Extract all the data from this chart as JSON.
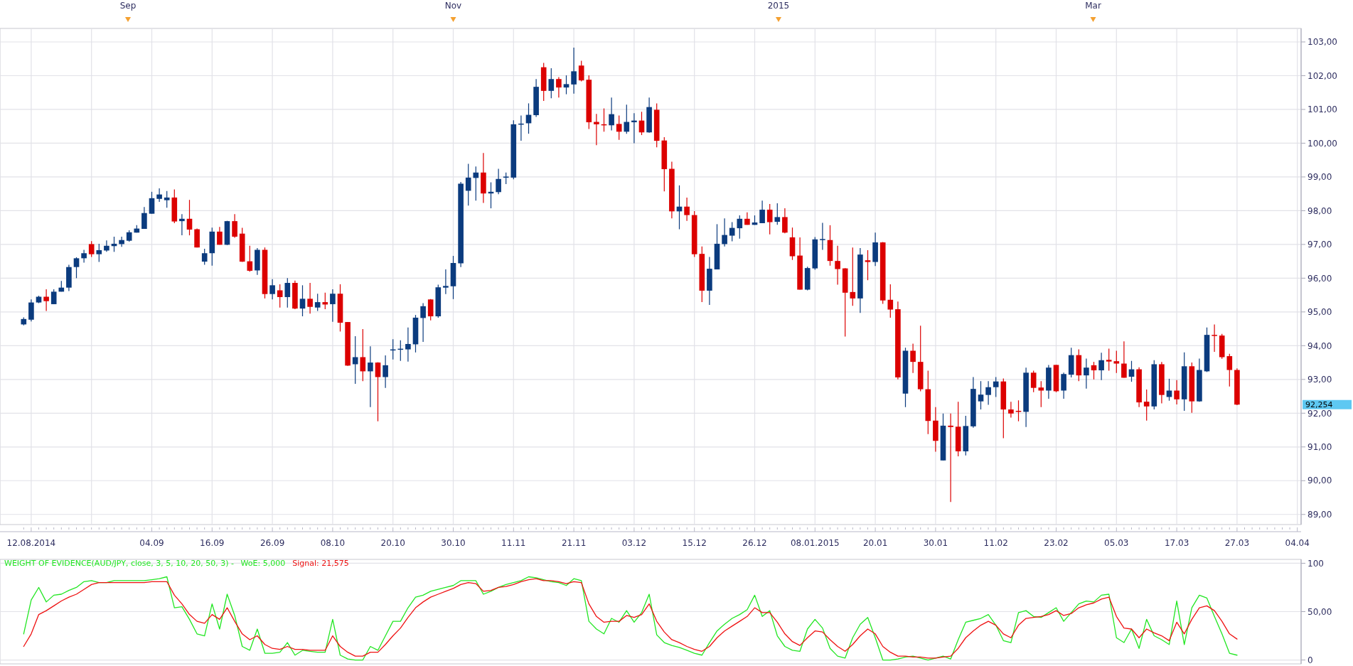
{
  "chart_data": [
    {
      "type": "candlestick",
      "categories": [
        null,
        "12.08.2014",
        null,
        null,
        null,
        null,
        null,
        null,
        null,
        null,
        null,
        null,
        null,
        null,
        null,
        null,
        null,
        "04.09",
        null,
        null,
        null,
        null,
        null,
        null,
        null,
        "16.09",
        null,
        null,
        null,
        null,
        null,
        null,
        null,
        "26.09",
        null,
        null,
        null,
        null,
        null,
        null,
        null,
        "08.10",
        null,
        null,
        null,
        null,
        null,
        null,
        null,
        "20.10",
        null,
        null,
        null,
        null,
        null,
        null,
        null,
        "30.10",
        null,
        null,
        null,
        null,
        null,
        null,
        null,
        "11.11",
        null,
        null,
        null,
        null,
        null,
        null,
        null,
        "21.11",
        null,
        null,
        null,
        null,
        null,
        null,
        null,
        "03.12",
        null,
        null,
        null,
        null,
        null,
        null,
        null,
        "15.12",
        null,
        null,
        null,
        null,
        null,
        null,
        null,
        "26.12",
        null,
        null,
        null,
        null,
        null,
        null,
        null,
        "08.01.2015",
        null,
        null,
        null,
        null,
        null,
        null,
        null,
        "20.01",
        null,
        null,
        null,
        null,
        null,
        null,
        null,
        "30.01",
        null,
        null,
        null,
        null,
        null,
        null,
        null,
        "11.02",
        null,
        null,
        null,
        null,
        null,
        null,
        null,
        "23.02",
        null,
        null,
        null,
        null,
        null,
        null,
        null,
        "05.03",
        null,
        null,
        null,
        null,
        null,
        null,
        null,
        "17.03",
        null,
        null,
        null,
        null,
        null,
        null,
        null,
        "27.03",
        null,
        null,
        null,
        null,
        null,
        null,
        null,
        "04.04"
      ],
      "ohlc": [
        [
          94.63,
          94.84,
          94.6,
          94.79
        ],
        [
          94.77,
          95.37,
          94.72,
          95.28
        ],
        [
          95.28,
          95.48,
          95.26,
          95.45
        ],
        [
          95.45,
          95.67,
          95.03,
          95.32
        ],
        [
          95.23,
          95.67,
          95.23,
          95.6
        ],
        [
          95.6,
          95.92,
          95.6,
          95.72
        ],
        [
          95.72,
          96.4,
          95.62,
          96.33
        ],
        [
          96.33,
          96.62,
          96.0,
          96.59
        ],
        [
          96.59,
          96.84,
          96.46,
          96.74
        ],
        [
          97.01,
          97.1,
          96.63,
          96.71
        ],
        [
          96.71,
          97.02,
          96.48,
          96.83
        ],
        [
          96.82,
          97.12,
          96.78,
          96.96
        ],
        [
          96.95,
          97.23,
          96.78,
          97.02
        ],
        [
          97.01,
          97.23,
          96.93,
          97.13
        ],
        [
          97.11,
          97.42,
          97.08,
          97.36
        ],
        [
          97.35,
          97.57,
          97.35,
          97.47
        ],
        [
          97.46,
          98.11,
          97.46,
          97.93
        ],
        [
          97.91,
          98.56,
          97.91,
          98.37
        ],
        [
          98.35,
          98.66,
          98.26,
          98.48
        ],
        [
          98.31,
          98.58,
          98.09,
          98.39
        ],
        [
          98.39,
          98.63,
          97.63,
          97.68
        ],
        [
          97.69,
          97.9,
          97.27,
          97.76
        ],
        [
          97.76,
          98.32,
          97.27,
          97.44
        ],
        [
          97.45,
          97.47,
          96.91,
          96.91
        ],
        [
          96.49,
          96.87,
          96.4,
          96.74
        ],
        [
          96.74,
          97.5,
          96.37,
          97.38
        ],
        [
          97.38,
          97.52,
          96.99,
          96.99
        ],
        [
          96.99,
          97.7,
          96.98,
          97.69
        ],
        [
          97.69,
          97.9,
          97.2,
          97.23
        ],
        [
          97.32,
          97.49,
          96.48,
          96.49
        ],
        [
          96.5,
          96.96,
          96.19,
          96.22
        ],
        [
          96.23,
          96.89,
          96.1,
          96.84
        ],
        [
          96.84,
          96.91,
          95.4,
          95.53
        ],
        [
          95.53,
          95.97,
          95.37,
          95.79
        ],
        [
          95.64,
          95.82,
          95.13,
          95.44
        ],
        [
          95.44,
          96.0,
          95.13,
          95.86
        ],
        [
          95.86,
          95.93,
          95.08,
          95.1
        ],
        [
          95.1,
          95.79,
          94.87,
          95.39
        ],
        [
          95.39,
          95.86,
          94.95,
          95.15
        ],
        [
          95.13,
          95.54,
          95.03,
          95.29
        ],
        [
          95.29,
          95.57,
          95.08,
          95.22
        ],
        [
          95.23,
          95.67,
          94.71,
          95.54
        ],
        [
          95.54,
          95.82,
          94.42,
          94.68
        ],
        [
          94.7,
          94.7,
          93.4,
          93.41
        ],
        [
          93.45,
          94.28,
          92.87,
          93.66
        ],
        [
          93.66,
          94.49,
          92.95,
          93.24
        ],
        [
          93.24,
          93.98,
          92.18,
          93.5
        ],
        [
          93.5,
          93.51,
          91.76,
          93.07
        ],
        [
          93.07,
          93.71,
          92.75,
          93.42
        ],
        [
          93.87,
          94.19,
          93.59,
          93.89
        ],
        [
          93.88,
          94.16,
          93.55,
          93.91
        ],
        [
          93.89,
          94.54,
          93.53,
          94.05
        ],
        [
          94.04,
          94.91,
          93.8,
          94.83
        ],
        [
          94.82,
          95.26,
          94.11,
          95.17
        ],
        [
          95.37,
          95.38,
          94.75,
          94.87
        ],
        [
          94.87,
          95.81,
          94.83,
          95.73
        ],
        [
          95.72,
          96.26,
          95.53,
          95.77
        ],
        [
          95.76,
          96.66,
          95.38,
          96.45
        ],
        [
          96.44,
          98.85,
          96.33,
          98.8
        ],
        [
          98.59,
          99.39,
          98.15,
          98.98
        ],
        [
          98.97,
          99.31,
          98.3,
          99.13
        ],
        [
          99.13,
          99.71,
          98.23,
          98.51
        ],
        [
          98.51,
          98.84,
          98.07,
          98.56
        ],
        [
          98.55,
          99.24,
          98.49,
          98.94
        ],
        [
          98.98,
          99.13,
          98.79,
          99.01
        ],
        [
          98.98,
          100.68,
          98.93,
          100.56
        ],
        [
          100.56,
          100.82,
          100.07,
          100.58
        ],
        [
          100.59,
          101.18,
          100.28,
          100.84
        ],
        [
          100.83,
          101.9,
          100.78,
          101.67
        ],
        [
          102.25,
          102.38,
          101.25,
          101.55
        ],
        [
          101.55,
          102.22,
          101.33,
          101.9
        ],
        [
          101.9,
          101.96,
          101.35,
          101.65
        ],
        [
          101.65,
          102.01,
          101.45,
          101.75
        ],
        [
          101.74,
          102.83,
          101.47,
          102.13
        ],
        [
          102.3,
          102.44,
          101.83,
          101.86
        ],
        [
          101.88,
          102.01,
          100.42,
          100.62
        ],
        [
          100.63,
          100.87,
          99.94,
          100.56
        ],
        [
          100.56,
          101.03,
          100.34,
          100.53
        ],
        [
          100.53,
          101.35,
          100.38,
          100.86
        ],
        [
          100.57,
          100.82,
          100.1,
          100.34
        ],
        [
          100.34,
          101.14,
          100.28,
          100.63
        ],
        [
          100.62,
          100.89,
          100.0,
          100.67
        ],
        [
          100.67,
          100.93,
          100.24,
          100.32
        ],
        [
          100.32,
          101.35,
          100.31,
          101.07
        ],
        [
          100.99,
          101.18,
          99.88,
          100.07
        ],
        [
          100.08,
          100.18,
          98.57,
          99.23
        ],
        [
          99.24,
          99.45,
          97.77,
          97.98
        ],
        [
          97.98,
          98.75,
          97.45,
          98.12
        ],
        [
          98.12,
          98.39,
          97.7,
          97.87
        ],
        [
          97.87,
          97.99,
          96.63,
          96.71
        ],
        [
          96.72,
          96.94,
          95.29,
          95.63
        ],
        [
          95.63,
          96.63,
          95.21,
          96.28
        ],
        [
          96.26,
          97.6,
          96.26,
          97.02
        ],
        [
          97.01,
          97.77,
          96.94,
          97.28
        ],
        [
          97.26,
          97.66,
          97.09,
          97.49
        ],
        [
          97.48,
          97.86,
          97.17,
          97.76
        ],
        [
          97.76,
          97.95,
          97.58,
          97.58
        ],
        [
          97.58,
          97.86,
          97.58,
          97.65
        ],
        [
          97.63,
          98.3,
          97.63,
          98.03
        ],
        [
          98.03,
          98.2,
          97.3,
          97.66
        ],
        [
          97.67,
          98.22,
          97.58,
          97.81
        ],
        [
          97.81,
          98.07,
          97.33,
          97.35
        ],
        [
          97.21,
          97.5,
          96.54,
          96.65
        ],
        [
          96.67,
          97.21,
          95.66,
          95.66
        ],
        [
          95.66,
          96.34,
          95.64,
          96.3
        ],
        [
          96.29,
          97.22,
          96.25,
          97.15
        ],
        [
          97.15,
          97.64,
          96.84,
          97.16
        ],
        [
          97.13,
          97.57,
          96.37,
          96.51
        ],
        [
          96.51,
          96.96,
          95.81,
          96.27
        ],
        [
          96.29,
          96.3,
          94.27,
          95.57
        ],
        [
          95.59,
          96.91,
          95.18,
          95.4
        ],
        [
          95.4,
          96.89,
          94.97,
          96.7
        ],
        [
          96.53,
          96.83,
          95.94,
          96.48
        ],
        [
          96.48,
          97.35,
          96.36,
          97.06
        ],
        [
          97.06,
          97.07,
          95.24,
          95.34
        ],
        [
          95.36,
          95.82,
          94.83,
          95.07
        ],
        [
          95.08,
          95.31,
          93.0,
          93.06
        ],
        [
          92.58,
          93.94,
          92.18,
          93.85
        ],
        [
          93.85,
          94.06,
          93.19,
          93.52
        ],
        [
          93.52,
          94.59,
          92.65,
          92.71
        ],
        [
          92.71,
          93.26,
          91.38,
          91.77
        ],
        [
          91.78,
          92.18,
          90.86,
          91.18
        ],
        [
          90.6,
          91.99,
          90.6,
          91.63
        ],
        [
          91.63,
          91.99,
          89.37,
          91.59
        ],
        [
          91.6,
          92.34,
          90.72,
          90.87
        ],
        [
          90.87,
          91.92,
          90.75,
          91.62
        ],
        [
          91.61,
          93.07,
          91.57,
          92.72
        ],
        [
          92.35,
          92.95,
          92.11,
          92.55
        ],
        [
          92.54,
          92.95,
          92.25,
          92.77
        ],
        [
          92.77,
          93.07,
          92.48,
          92.94
        ],
        [
          92.94,
          93.03,
          91.26,
          92.11
        ],
        [
          92.11,
          92.34,
          91.87,
          91.99
        ],
        [
          92.07,
          92.38,
          91.76,
          92.04
        ],
        [
          92.04,
          93.35,
          91.59,
          93.2
        ],
        [
          93.2,
          93.26,
          92.62,
          92.75
        ],
        [
          92.76,
          92.95,
          92.18,
          92.67
        ],
        [
          92.67,
          93.43,
          92.43,
          93.35
        ],
        [
          93.43,
          93.43,
          92.62,
          92.65
        ],
        [
          92.67,
          93.2,
          92.43,
          93.16
        ],
        [
          93.14,
          93.94,
          93.06,
          93.72
        ],
        [
          93.72,
          93.89,
          92.95,
          93.12
        ],
        [
          93.12,
          93.62,
          92.73,
          93.35
        ],
        [
          93.42,
          93.52,
          93.0,
          93.27
        ],
        [
          93.27,
          93.79,
          92.98,
          93.57
        ],
        [
          93.58,
          93.91,
          93.26,
          93.53
        ],
        [
          93.54,
          93.85,
          93.19,
          93.47
        ],
        [
          93.47,
          94.13,
          93.05,
          93.05
        ],
        [
          93.08,
          93.55,
          92.93,
          93.3
        ],
        [
          93.3,
          93.36,
          92.18,
          92.32
        ],
        [
          92.34,
          92.7,
          91.78,
          92.2
        ],
        [
          92.2,
          93.57,
          92.11,
          93.45
        ],
        [
          93.45,
          93.52,
          92.29,
          92.54
        ],
        [
          92.48,
          93.02,
          92.37,
          92.67
        ],
        [
          92.67,
          92.98,
          92.26,
          92.41
        ],
        [
          92.41,
          93.8,
          92.07,
          93.39
        ],
        [
          93.39,
          93.5,
          92.01,
          92.35
        ],
        [
          92.35,
          93.62,
          92.34,
          93.28
        ],
        [
          93.24,
          94.54,
          93.22,
          94.32
        ],
        [
          94.32,
          94.63,
          93.82,
          94.29
        ],
        [
          94.3,
          94.35,
          93.61,
          93.66
        ],
        [
          93.69,
          93.76,
          92.79,
          93.28
        ],
        [
          93.28,
          93.33,
          92.24,
          92.254
        ],
        null,
        null,
        null,
        null,
        null,
        null,
        null,
        null
      ],
      "colors": [
        "#0b3b7e",
        "#0b3b7e",
        "#0b3b7e",
        "#dc0000",
        "#0b3b7e",
        "#0b3b7e",
        "#0b3b7e",
        "#0b3b7e",
        "#0b3b7e",
        "#dc0000",
        "#0b3b7e",
        "#0b3b7e",
        "#0b3b7e",
        "#0b3b7e",
        "#0b3b7e",
        "#0b3b7e",
        "#0b3b7e",
        "#0b3b7e",
        "#0b3b7e",
        "#0b3b7e",
        "#dc0000",
        "#0b3b7e",
        "#dc0000",
        "#dc0000",
        "#0b3b7e",
        "#0b3b7e",
        "#dc0000",
        "#0b3b7e",
        "#dc0000",
        "#dc0000",
        "#dc0000",
        "#0b3b7e",
        "#dc0000",
        "#0b3b7e",
        "#dc0000",
        "#0b3b7e",
        "#dc0000",
        "#0b3b7e",
        "#dc0000",
        "#0b3b7e",
        "#dc0000",
        "#0b3b7e",
        "#dc0000",
        "#dc0000",
        "#0b3b7e",
        "#dc0000",
        "#0b3b7e",
        "#dc0000",
        "#0b3b7e",
        "#0b3b7e",
        "#0b3b7e",
        "#0b3b7e",
        "#0b3b7e",
        "#0b3b7e",
        "#dc0000",
        "#0b3b7e",
        "#0b3b7e",
        "#0b3b7e",
        "#0b3b7e",
        "#0b3b7e",
        "#0b3b7e",
        "#dc0000",
        "#0b3b7e",
        "#0b3b7e",
        "#0b3b7e",
        "#0b3b7e",
        "#0b3b7e",
        "#0b3b7e",
        "#0b3b7e",
        "#dc0000",
        "#0b3b7e",
        "#dc0000",
        "#0b3b7e",
        "#0b3b7e",
        "#dc0000",
        "#dc0000",
        "#dc0000",
        "#dc0000",
        "#0b3b7e",
        "#dc0000",
        "#0b3b7e",
        "#0b3b7e",
        "#dc0000",
        "#0b3b7e",
        "#dc0000",
        "#dc0000",
        "#dc0000",
        "#0b3b7e",
        "#dc0000",
        "#dc0000",
        "#dc0000",
        "#0b3b7e",
        "#0b3b7e",
        "#0b3b7e",
        "#0b3b7e",
        "#0b3b7e",
        "#dc0000",
        "#0b3b7e",
        "#0b3b7e",
        "#dc0000",
        "#0b3b7e",
        "#dc0000",
        "#dc0000",
        "#dc0000",
        "#0b3b7e",
        "#0b3b7e",
        "#0b3b7e",
        "#dc0000",
        "#dc0000",
        "#dc0000",
        "#dc0000",
        "#0b3b7e",
        "#dc0000",
        "#0b3b7e",
        "#dc0000",
        "#dc0000",
        "#dc0000",
        "#0b3b7e",
        "#dc0000",
        "#dc0000",
        "#dc0000",
        "#dc0000",
        "#0b3b7e",
        "#dc0000",
        "#dc0000",
        "#0b3b7e",
        "#0b3b7e",
        "#0b3b7e",
        "#0b3b7e",
        "#0b3b7e",
        "#dc0000",
        "#dc0000",
        "#dc0000",
        "#0b3b7e",
        "#dc0000",
        "#dc0000",
        "#0b3b7e",
        "#dc0000",
        "#0b3b7e",
        "#0b3b7e",
        "#dc0000",
        "#0b3b7e",
        "#dc0000",
        "#0b3b7e",
        "#dc0000",
        "#dc0000",
        "#dc0000",
        "#0b3b7e",
        "#dc0000",
        "#dc0000",
        "#0b3b7e",
        "#dc0000",
        "#0b3b7e",
        "#dc0000",
        "#0b3b7e",
        "#dc0000",
        "#0b3b7e",
        "#0b3b7e",
        "#dc0000",
        "#dc0000",
        "#dc0000",
        "#dc0000",
        null,
        null,
        null,
        null,
        null,
        null,
        null,
        null
      ],
      "ylim": [
        88.7,
        103.4
      ],
      "yticks": [
        {
          "value": 89,
          "label": "89,00"
        },
        {
          "value": 90,
          "label": "90,00"
        },
        {
          "value": 91,
          "label": "91,00"
        },
        {
          "value": 92,
          "label": "92,00"
        },
        {
          "value": 93,
          "label": "93,00"
        },
        {
          "value": 94,
          "label": "94,00"
        },
        {
          "value": 95,
          "label": "95,00"
        },
        {
          "value": 96,
          "label": "96,00"
        },
        {
          "value": 97,
          "label": "97,00"
        },
        {
          "value": 98,
          "label": "98,00"
        },
        {
          "value": 99,
          "label": "99,00"
        },
        {
          "value": 100,
          "label": "100,00"
        },
        {
          "value": 101,
          "label": "101,00"
        },
        {
          "value": 102,
          "label": "102,00"
        },
        {
          "value": 103,
          "label": "103,00"
        }
      ],
      "x2lim": [
        "2014-08-08",
        "2015-04-09"
      ],
      "x2ticks": [
        {
          "value": "2014-09-01",
          "label": "Sep"
        },
        {
          "value": "2014-11-01",
          "label": "Nov"
        },
        {
          "value": "2015-01-01",
          "label": "2015"
        },
        {
          "value": "2015-03-01",
          "label": "Mar"
        }
      ],
      "grid": true,
      "annotations": [
        "92,254"
      ]
    },
    {
      "type": "line",
      "title": "WEIGHT OF EVIDENCE(AUD/JPY, close, 3, 5, 10, 20, 50, 3) -",
      "categories": [
        null,
        "12.08.2014",
        null,
        null,
        null,
        null,
        null,
        null,
        null,
        null,
        null,
        null,
        null,
        null,
        null,
        null,
        null,
        "04.09",
        null,
        null,
        null,
        null,
        null,
        null,
        null,
        "16.09",
        null,
        null,
        null,
        null,
        null,
        null,
        null,
        "26.09",
        null,
        null,
        null,
        null,
        null,
        null,
        null,
        "08.10",
        null,
        null,
        null,
        null,
        null,
        null,
        null,
        "20.10",
        null,
        null,
        null,
        null,
        null,
        null,
        null,
        "30.10",
        null,
        null,
        null,
        null,
        null,
        null,
        null,
        "11.11",
        null,
        null,
        null,
        null,
        null,
        null,
        null,
        "21.11",
        null,
        null,
        null,
        null,
        null,
        null,
        null,
        "03.12",
        null,
        null,
        null,
        null,
        null,
        null,
        null,
        "15.12",
        null,
        null,
        null,
        null,
        null,
        null,
        null,
        "26.12",
        null,
        null,
        null,
        null,
        null,
        null,
        null,
        "08.01.2015",
        null,
        null,
        null,
        null,
        null,
        null,
        null,
        "20.01",
        null,
        null,
        null,
        null,
        null,
        null,
        null,
        "30.01",
        null,
        null,
        null,
        null,
        null,
        null,
        null,
        "11.02",
        null,
        null,
        null,
        null,
        null,
        null,
        null,
        "23.02",
        null,
        null,
        null,
        null,
        null,
        null,
        null,
        "05.03",
        null,
        null,
        null,
        null,
        null,
        null,
        null,
        "17.03",
        null,
        null,
        null,
        null,
        null,
        null,
        null,
        "27.03",
        null,
        null,
        null,
        null,
        null,
        null,
        null,
        "04.04"
      ],
      "series": [
        {
          "name": "WoE: 5,000",
          "color": "#22e622",
          "values": [
            27,
            62,
            75,
            60,
            67,
            68,
            72,
            75,
            81,
            82,
            80,
            80,
            82,
            82,
            82,
            82,
            82,
            83,
            84,
            86,
            54,
            55,
            42,
            27,
            25,
            58,
            32,
            68,
            46,
            14,
            10,
            32,
            7,
            7,
            8,
            18,
            5,
            10,
            9,
            8,
            8,
            42,
            5,
            1,
            0,
            0,
            14,
            10,
            25,
            40,
            40,
            54,
            65,
            67,
            71,
            73,
            75,
            77,
            82,
            82,
            82,
            68,
            71,
            75,
            78,
            80,
            82,
            86,
            85,
            83,
            81,
            80,
            77,
            84,
            82,
            40,
            32,
            27,
            43,
            39,
            51,
            39,
            49,
            68,
            26,
            18,
            15,
            13,
            10,
            7,
            5,
            18,
            30,
            37,
            43,
            47,
            52,
            67,
            45,
            51,
            25,
            14,
            10,
            9,
            32,
            42,
            33,
            12,
            4,
            2,
            23,
            37,
            44,
            23,
            0,
            0,
            1,
            3,
            4,
            2,
            0,
            2,
            4,
            1,
            21,
            39,
            41,
            43,
            47,
            36,
            20,
            18,
            49,
            51,
            45,
            44,
            49,
            54,
            40,
            49,
            58,
            61,
            60,
            67,
            68,
            23,
            18,
            32,
            12,
            42,
            25,
            21,
            16,
            61,
            16,
            54,
            67,
            64,
            45,
            27,
            7,
            5,
            null,
            null,
            null,
            null,
            null,
            null,
            null,
            null
          ]
        },
        {
          "name": "Signal: 21,575",
          "color": "#ee1111",
          "values": [
            14,
            27,
            47,
            51,
            56,
            61,
            65,
            68,
            73,
            78,
            80,
            80,
            80,
            80,
            80,
            80,
            80,
            81,
            81,
            81,
            67,
            58,
            47,
            40,
            38,
            47,
            42,
            54,
            40,
            27,
            21,
            25,
            16,
            12,
            11,
            14,
            11,
            11,
            10,
            10,
            10,
            25,
            14,
            8,
            4,
            4,
            8,
            8,
            16,
            25,
            33,
            44,
            54,
            60,
            65,
            68,
            71,
            74,
            78,
            80,
            79,
            71,
            72,
            75,
            76,
            78,
            81,
            83,
            84,
            82,
            82,
            81,
            79,
            81,
            80,
            58,
            45,
            39,
            40,
            40,
            46,
            44,
            47,
            58,
            40,
            29,
            21,
            18,
            14,
            11,
            9,
            14,
            23,
            30,
            35,
            40,
            45,
            54,
            49,
            49,
            39,
            27,
            19,
            15,
            23,
            30,
            29,
            21,
            14,
            9,
            16,
            25,
            32,
            27,
            14,
            8,
            4,
            4,
            3,
            3,
            2,
            2,
            3,
            4,
            12,
            23,
            30,
            36,
            40,
            36,
            27,
            23,
            36,
            43,
            44,
            45,
            47,
            51,
            46,
            48,
            54,
            57,
            59,
            63,
            65,
            45,
            33,
            32,
            23,
            32,
            28,
            25,
            20,
            39,
            27,
            42,
            54,
            56,
            51,
            40,
            27,
            21.6,
            null,
            null,
            null,
            null,
            null,
            null,
            null,
            null
          ]
        }
      ],
      "ylim": [
        -4,
        104
      ],
      "yticks": [
        {
          "value": 0,
          "label": "0"
        },
        {
          "value": 50,
          "label": "50,00"
        },
        {
          "value": 100,
          "label": "100"
        }
      ],
      "tick_labels": "y",
      "grid": "y",
      "legend": "top left"
    }
  ]
}
